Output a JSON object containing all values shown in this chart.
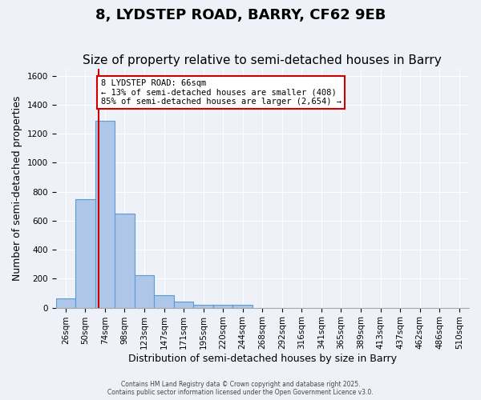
{
  "title": "8, LYDSTEP ROAD, BARRY, CF62 9EB",
  "subtitle": "Size of property relative to semi-detached houses in Barry",
  "xlabel": "Distribution of semi-detached houses by size in Barry",
  "ylabel": "Number of semi-detached properties",
  "footer_line1": "Contains HM Land Registry data © Crown copyright and database right 2025.",
  "footer_line2": "Contains public sector information licensed under the Open Government Licence v3.0.",
  "bins": [
    "26sqm",
    "50sqm",
    "74sqm",
    "98sqm",
    "123sqm",
    "147sqm",
    "171sqm",
    "195sqm",
    "220sqm",
    "244sqm",
    "268sqm",
    "292sqm",
    "316sqm",
    "341sqm",
    "365sqm",
    "389sqm",
    "413sqm",
    "437sqm",
    "462sqm",
    "486sqm",
    "510sqm"
  ],
  "values": [
    65,
    750,
    1290,
    648,
    225,
    85,
    40,
    20,
    20,
    20,
    0,
    0,
    0,
    0,
    0,
    0,
    0,
    0,
    0,
    0,
    0
  ],
  "bar_color": "#aec6e8",
  "bar_edge_color": "#5b9bd5",
  "red_line_x": 1.667,
  "red_line_color": "#cc0000",
  "annotation_text": "8 LYDSTEP ROAD: 66sqm\n← 13% of semi-detached houses are smaller (408)\n85% of semi-detached houses are larger (2,654) →",
  "annotation_box_color": "#cc0000",
  "ylim": [
    0,
    1650
  ],
  "yticks": [
    0,
    200,
    400,
    600,
    800,
    1000,
    1200,
    1400,
    1600
  ],
  "bg_color": "#eef2f8",
  "grid_color": "#ffffff",
  "title_fontsize": 13,
  "subtitle_fontsize": 11,
  "axis_fontsize": 9,
  "tick_fontsize": 7.5
}
